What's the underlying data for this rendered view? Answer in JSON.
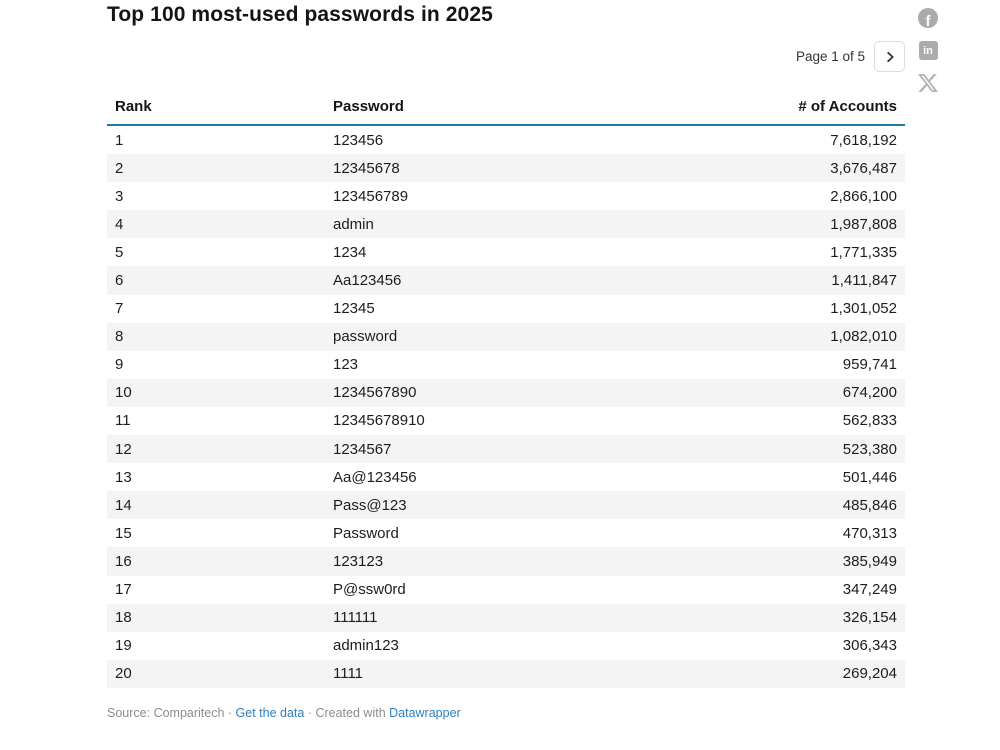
{
  "title": "Top 100 most-used passwords in 2025",
  "pagination": {
    "label": "Page 1 of 5"
  },
  "share": {
    "facebook_label": "f",
    "linkedin_label": "in"
  },
  "chart_data": {
    "type": "table",
    "title": "Top 100 most-used passwords in 2025",
    "columns": [
      "Rank",
      "Password",
      "# of Accounts"
    ],
    "rows": [
      [
        "1",
        "123456",
        "7,618,192"
      ],
      [
        "2",
        "12345678",
        "3,676,487"
      ],
      [
        "3",
        "123456789",
        "2,866,100"
      ],
      [
        "4",
        "admin",
        "1,987,808"
      ],
      [
        "5",
        "1234",
        "1,771,335"
      ],
      [
        "6",
        "Aa123456",
        "1,411,847"
      ],
      [
        "7",
        "12345",
        "1,301,052"
      ],
      [
        "8",
        "password",
        "1,082,010"
      ],
      [
        "9",
        "123",
        "959,741"
      ],
      [
        "10",
        "1234567890",
        "674,200"
      ],
      [
        "11",
        "12345678910",
        "562,833"
      ],
      [
        "12",
        "1234567",
        "523,380"
      ],
      [
        "13",
        "Aa@123456",
        "501,446"
      ],
      [
        "14",
        "Pass@123",
        "485,846"
      ],
      [
        "15",
        "Password",
        "470,313"
      ],
      [
        "16",
        "123123",
        "385,949"
      ],
      [
        "17",
        "P@ssw0rd",
        "347,249"
      ],
      [
        "18",
        "111111",
        "326,154"
      ],
      [
        "19",
        "admin123",
        "306,343"
      ],
      [
        "20",
        "1111",
        "269,204"
      ]
    ],
    "pagination": "Page 1 of 5"
  },
  "footer": {
    "source_label": "Source: ",
    "source_name": "Comparitech",
    "sep1": " · ",
    "get_data_link": "Get the data",
    "sep2": " · ",
    "created_with": "Created with ",
    "datawrapper_link": "Datawrapper"
  },
  "colors": {
    "header_rule": "#1d7da1",
    "row_stripe": "#f4f4f4",
    "link_blue": "#2d7fc1",
    "icon_gray": "#ababab",
    "text": "#1d1d1d"
  }
}
